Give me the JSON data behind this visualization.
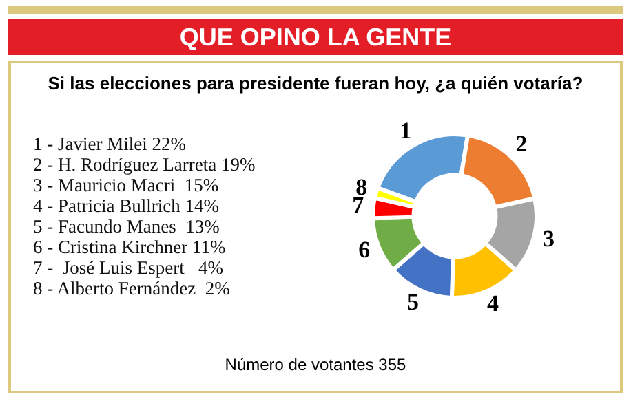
{
  "chart_data": {
    "type": "donut",
    "title": "QUE OPINO LA GENTE",
    "subtitle": "Si las elecciones para presidente fueran hoy, ¿a quién votaría?",
    "categories": [
      "1",
      "2",
      "3",
      "4",
      "5",
      "6",
      "7",
      "8"
    ],
    "values": [
      22,
      19,
      15,
      14,
      13,
      11,
      4,
      2
    ],
    "colors": [
      "#5b9bd5",
      "#ed7d31",
      "#a5a5a5",
      "#ffc000",
      "#4472c4",
      "#70ad47",
      "#ff0000",
      "#ffff00"
    ],
    "annotations": [
      "1 - Javier Milei 22%",
      "2 - H. Rodríguez Larreta 19%",
      "3 - Mauricio Macri  15%",
      "4 - Patricia Bullrich 14%",
      "5 - Facundo Manes  13%",
      "6 - Cristina Kirchner 11%",
      "7 -  José Luis Espert   4%",
      "8 - Alberto Fernández  2%",
      "Número de votantes 355"
    ]
  }
}
